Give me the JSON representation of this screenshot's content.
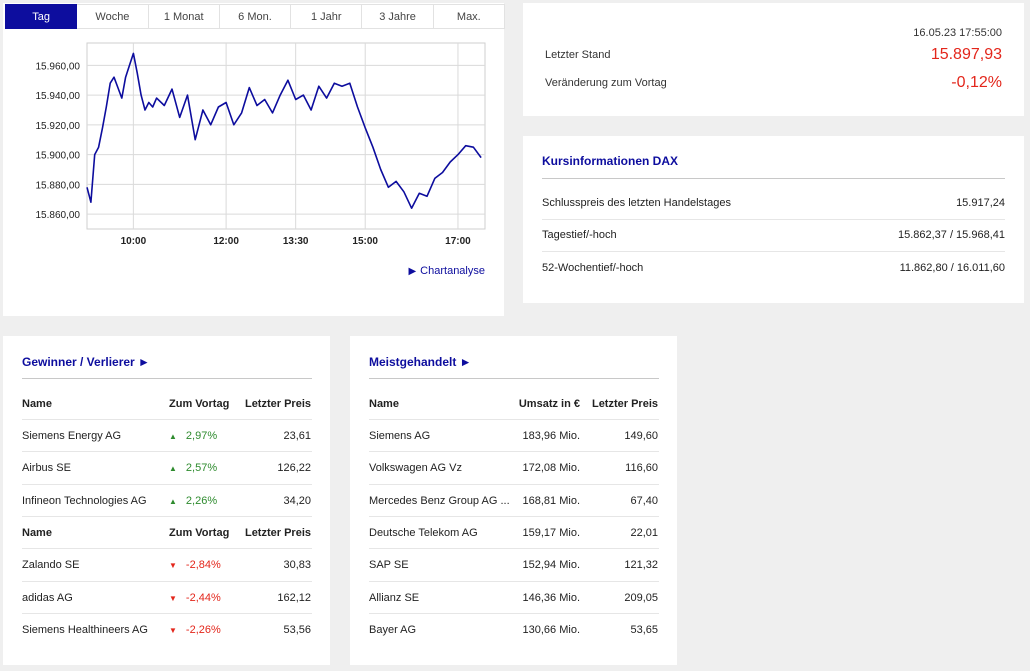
{
  "tabs": [
    "Tag",
    "Woche",
    "1 Monat",
    "6 Mon.",
    "1 Jahr",
    "3 Jahre",
    "Max."
  ],
  "active_tab": "Tag",
  "chart_link": "Chartanalyse",
  "colors": {
    "accent": "#0d0d9e",
    "negative": "#e3261b",
    "positive": "#2e8b2e"
  },
  "chart_data": {
    "type": "line",
    "title": "",
    "xlabel": "",
    "ylabel": "",
    "x_ticks": [
      "10:00",
      "12:00",
      "13:30",
      "15:00",
      "17:00"
    ],
    "y_ticks": [
      "15.960,00",
      "15.940,00",
      "15.920,00",
      "15.900,00",
      "15.880,00",
      "15.860,00"
    ],
    "ylim": [
      15850,
      15975
    ],
    "xlim": [
      "09:00",
      "17:35"
    ],
    "grid": true,
    "series": [
      {
        "name": "",
        "x": [
          "09:00",
          "09:05",
          "09:10",
          "09:15",
          "09:20",
          "09:25",
          "09:30",
          "09:35",
          "09:40",
          "09:45",
          "09:50",
          "09:55",
          "10:00",
          "10:05",
          "10:10",
          "10:15",
          "10:20",
          "10:25",
          "10:30",
          "10:40",
          "10:50",
          "11:00",
          "11:10",
          "11:20",
          "11:30",
          "11:40",
          "11:50",
          "12:00",
          "12:10",
          "12:20",
          "12:30",
          "12:40",
          "12:50",
          "13:00",
          "13:10",
          "13:20",
          "13:30",
          "13:40",
          "13:50",
          "14:00",
          "14:10",
          "14:20",
          "14:30",
          "14:40",
          "14:50",
          "15:00",
          "15:10",
          "15:20",
          "15:30",
          "15:40",
          "15:50",
          "16:00",
          "16:10",
          "16:20",
          "16:30",
          "16:40",
          "16:50",
          "17:00",
          "17:10",
          "17:20",
          "17:30"
        ],
        "values": [
          15878,
          15868,
          15900,
          15905,
          15918,
          15932,
          15948,
          15952,
          15945,
          15938,
          15952,
          15960,
          15968,
          15955,
          15940,
          15930,
          15935,
          15932,
          15938,
          15933,
          15944,
          15925,
          15940,
          15910,
          15930,
          15920,
          15932,
          15935,
          15920,
          15928,
          15945,
          15933,
          15937,
          15928,
          15940,
          15950,
          15937,
          15940,
          15930,
          15946,
          15938,
          15948,
          15946,
          15948,
          15932,
          15918,
          15905,
          15890,
          15878,
          15882,
          15875,
          15864,
          15874,
          15872,
          15884,
          15888,
          15895,
          15900,
          15906,
          15905,
          15898
        ]
      }
    ]
  },
  "quote": {
    "timestamp": "16.05.23 17:55:00",
    "last_label": "Letzter Stand",
    "last_value": "15.897,93",
    "change_label": "Veränderung zum Vortag",
    "change_value": "-0,12%"
  },
  "kurs": {
    "title": "Kursinformationen DAX",
    "rows": [
      {
        "label": "Schlusspreis des letzten Handelstages",
        "value": "15.917,24"
      },
      {
        "label": "Tagestief/-hoch",
        "value": "15.862,37 / 15.968,41"
      },
      {
        "label": "52-Wochentief/-hoch",
        "value": "11.862,80 / 16.011,60"
      }
    ]
  },
  "gewinner": {
    "title": "Gewinner / Verlierer ►",
    "headers": [
      "Name",
      "Zum Vortag",
      "Letzter Preis"
    ],
    "winners": [
      {
        "name": "Siemens Energy AG",
        "change": "2,97%",
        "price": "23,61",
        "dir": "up"
      },
      {
        "name": "Airbus SE",
        "change": "2,57%",
        "price": "126,22",
        "dir": "up"
      },
      {
        "name": "Infineon Technologies AG",
        "change": "2,26%",
        "price": "34,20",
        "dir": "up"
      }
    ],
    "losers": [
      {
        "name": "Zalando SE",
        "change": "-2,84%",
        "price": "30,83",
        "dir": "down"
      },
      {
        "name": "adidas AG",
        "change": "-2,44%",
        "price": "162,12",
        "dir": "down"
      },
      {
        "name": "Siemens Healthineers AG",
        "change": "-2,26%",
        "price": "53,56",
        "dir": "down"
      }
    ]
  },
  "meist": {
    "title": "Meistgehandelt ►",
    "headers": [
      "Name",
      "Umsatz in €",
      "Letzter Preis"
    ],
    "rows": [
      {
        "name": "Siemens AG",
        "volume": "183,96 Mio.",
        "price": "149,60"
      },
      {
        "name": "Volkswagen AG Vz",
        "volume": "172,08 Mio.",
        "price": "116,60"
      },
      {
        "name": "Mercedes Benz Group AG ...",
        "volume": "168,81 Mio.",
        "price": "67,40"
      },
      {
        "name": "Deutsche Telekom AG",
        "volume": "159,17 Mio.",
        "price": "22,01"
      },
      {
        "name": "SAP SE",
        "volume": "152,94 Mio.",
        "price": "121,32"
      },
      {
        "name": "Allianz SE",
        "volume": "146,36 Mio.",
        "price": "209,05"
      },
      {
        "name": "Bayer AG",
        "volume": "130,66 Mio.",
        "price": "53,65"
      }
    ]
  }
}
